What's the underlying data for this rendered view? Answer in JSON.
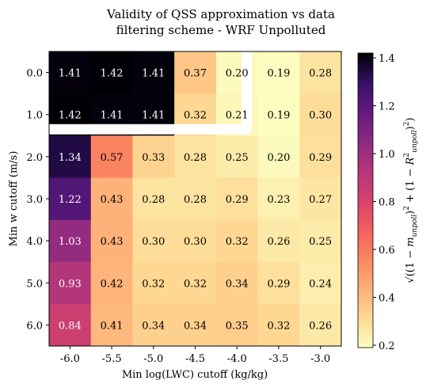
{
  "chart_data": {
    "type": "heatmap",
    "title": "Validity of QSS approximation vs data\nfiltering scheme - WRF Unpolluted",
    "xlabel": "Min log(LWC) cutoff (kg/kg)",
    "ylabel": "Min w cutoff (m/s)",
    "x_categories": [
      "-6.0",
      "-5.5",
      "-5.0",
      "-4.5",
      "-4.0",
      "-3.5",
      "-3.0"
    ],
    "y_categories": [
      "0.0",
      "1.0",
      "2.0",
      "3.0",
      "4.0",
      "5.0",
      "6.0"
    ],
    "values": [
      [
        1.41,
        1.42,
        1.41,
        0.37,
        0.2,
        0.19,
        0.28
      ],
      [
        1.42,
        1.41,
        1.41,
        0.32,
        0.21,
        0.19,
        0.3
      ],
      [
        1.34,
        0.57,
        0.33,
        0.28,
        0.25,
        0.2,
        0.29
      ],
      [
        1.22,
        0.43,
        0.28,
        0.28,
        0.29,
        0.23,
        0.27
      ],
      [
        1.03,
        0.43,
        0.3,
        0.3,
        0.32,
        0.26,
        0.25
      ],
      [
        0.93,
        0.42,
        0.32,
        0.32,
        0.34,
        0.29,
        0.24
      ],
      [
        0.84,
        0.41,
        0.34,
        0.34,
        0.35,
        0.32,
        0.26
      ]
    ],
    "colormap": "magma_r",
    "colorbar": {
      "vmin": 0.19,
      "vmax": 1.42,
      "ticks": [
        "0.2",
        "0.4",
        "0.6",
        "0.8",
        "1.0",
        "1.2",
        "1.4"
      ],
      "label": "√((1 − m_unpoll)² + (1 − R²_unpoll)²)"
    },
    "highlight": "white L-shaped outline around the top-left region (rows 0.0–1.0, columns -6.0 to -3.5)"
  }
}
